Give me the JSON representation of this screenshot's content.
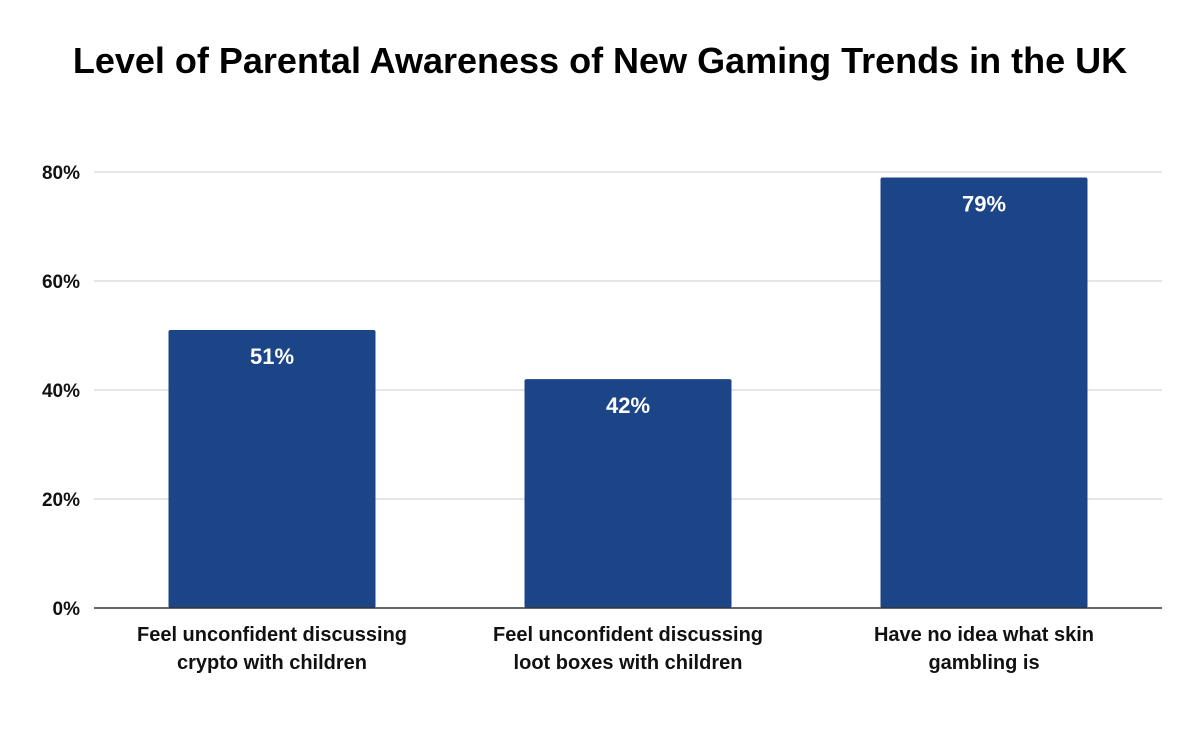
{
  "chart_data": {
    "type": "bar",
    "title": "Level of Parental Awareness of New Gaming Trends in the UK",
    "categories": [
      "Feel unconfident discussing crypto with children",
      "Feel unconfident discussing loot boxes with children",
      "Have no idea what skin gambling is"
    ],
    "values": [
      51,
      42,
      79
    ],
    "value_labels": [
      "51%",
      "42%",
      "79%"
    ],
    "yticks": [
      "0%",
      "20%",
      "40%",
      "60%",
      "80%"
    ],
    "ylim": [
      0,
      80
    ],
    "xlabel": "",
    "ylabel": "",
    "grid": true,
    "legend": "none",
    "bar_color": "#1c4587"
  }
}
